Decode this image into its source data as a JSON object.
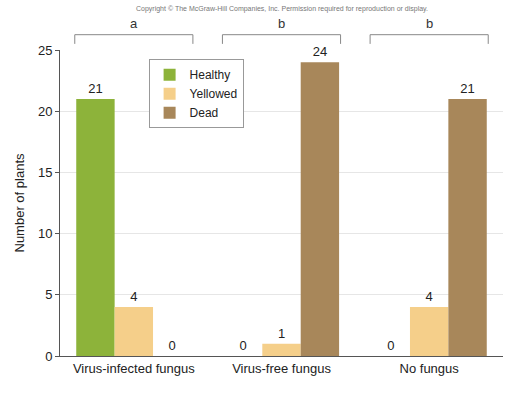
{
  "chart_data": {
    "type": "bar",
    "y_label": "Number of plants",
    "categories": [
      "Virus-infected fungus",
      "Virus-free fungus",
      "No fungus"
    ],
    "series": [
      {
        "name": "Healthy",
        "color": "#8db33a",
        "values": [
          21,
          0,
          0
        ]
      },
      {
        "name": "Yellowed",
        "color": "#f5cf8a",
        "values": [
          4,
          1,
          4
        ]
      },
      {
        "name": "Dead",
        "color": "#a8875a",
        "values": [
          0,
          24,
          21
        ]
      }
    ],
    "ylim": [
      0,
      25
    ],
    "yticks": [
      0,
      5,
      10,
      15,
      20,
      25
    ],
    "grid": true,
    "legend": "upper left",
    "data_labels": true,
    "annotations": [
      {
        "text": "Copyright © The McGraw-Hill Companies, Inc. Permission required for reproduction or display."
      },
      {
        "text": "a",
        "category": "Virus-infected fungus"
      },
      {
        "text": "b",
        "category": "Virus-free fungus"
      },
      {
        "text": "b",
        "category": "No fungus"
      }
    ]
  }
}
